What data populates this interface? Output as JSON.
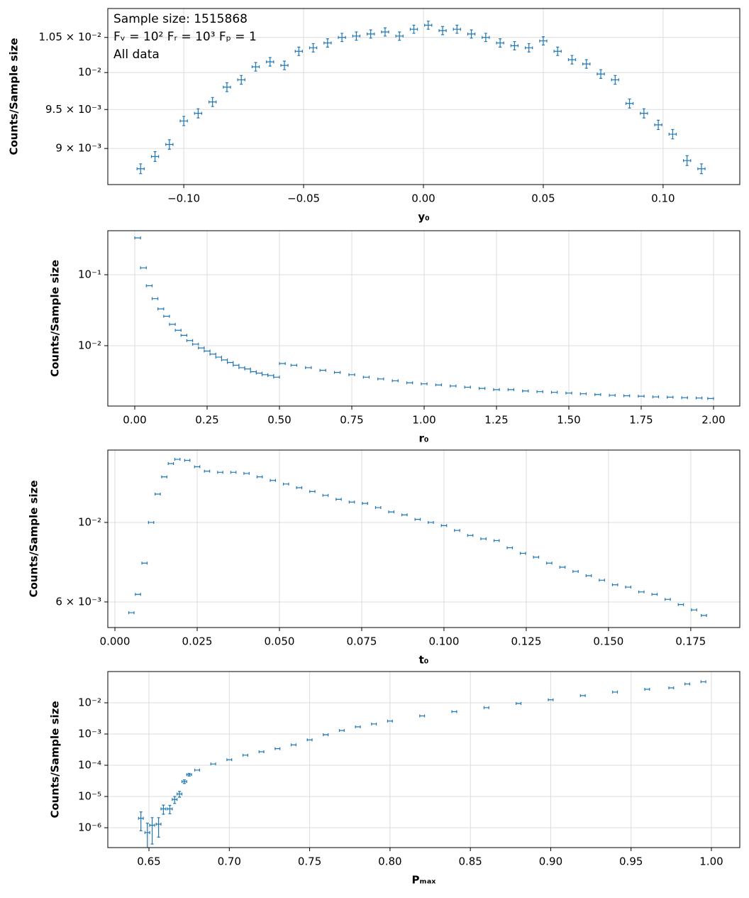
{
  "chart_data": [
    {
      "type": "errorbar",
      "xlabel": "y₀",
      "ylabel": "Counts/Sample size",
      "color": "#1f77b4",
      "yscale": "log",
      "grid": true,
      "annotations": [
        "Sample size: 1515868",
        "Fᵥ = 10²   Fᵣ = 10³   Fₚ = 1",
        "All data"
      ],
      "xlim": [
        -0.1317,
        0.132
      ],
      "ylim": [
        0.00856,
        0.01093
      ],
      "xticks": [
        {
          "value": -0.1,
          "label": "−0.10"
        },
        {
          "value": -0.05,
          "label": "−0.05"
        },
        {
          "value": 0,
          "label": "0.00"
        },
        0.05,
        {
          "value": 0.1,
          "label": "0.10"
        }
      ],
      "yticks": [
        {
          "value": 0.009,
          "label": "9 × 10⁻³"
        },
        {
          "value": 0.0095,
          "label": "9.5 × 10⁻³"
        },
        {
          "value": 0.01,
          "label": "10⁻²"
        },
        {
          "value": 0.0105,
          "label": "1.05 × 10⁻²"
        }
      ],
      "xerr": 0.0015,
      "yerr": 6e-05,
      "x": [
        -0.118,
        -0.112,
        -0.106,
        -0.1,
        -0.094,
        -0.088,
        -0.082,
        -0.076,
        -0.07,
        -0.064,
        -0.058,
        -0.052,
        -0.046,
        -0.04,
        -0.034,
        -0.028,
        -0.022,
        -0.016,
        -0.01,
        -0.004,
        0.002,
        0.008,
        0.014,
        0.02,
        0.026,
        0.032,
        0.038,
        0.044,
        0.05,
        0.056,
        0.062,
        0.068,
        0.074,
        0.08,
        0.086,
        0.092,
        0.098,
        0.104,
        0.11,
        0.116
      ],
      "values": [
        0.00875,
        0.0089,
        0.00905,
        0.00935,
        0.00945,
        0.0096,
        0.0098,
        0.0099,
        0.01008,
        0.01015,
        0.0101,
        0.0103,
        0.01035,
        0.01042,
        0.0105,
        0.01052,
        0.01055,
        0.01058,
        0.01052,
        0.01062,
        0.01068,
        0.0106,
        0.01062,
        0.01055,
        0.0105,
        0.01042,
        0.01038,
        0.01035,
        0.01045,
        0.0103,
        0.01018,
        0.01012,
        0.00998,
        0.0099,
        0.00958,
        0.00945,
        0.0093,
        0.00918,
        0.00885,
        0.00875
      ]
    },
    {
      "type": "errorbar",
      "xlabel": "r₀",
      "ylabel": "Counts/Sample size",
      "color": "#1f77b4",
      "yscale": "log",
      "grid": true,
      "xlim": [
        -0.0931,
        2.0907
      ],
      "ylim": [
        0.00141,
        0.417
      ],
      "xticks": [
        {
          "value": 0,
          "label": "0.00"
        },
        0.25,
        {
          "value": 0.5,
          "label": "0.50"
        },
        0.75,
        {
          "value": 1,
          "label": "1.00"
        },
        1.25,
        {
          "value": 1.5,
          "label": "1.50"
        },
        1.75,
        {
          "value": 2,
          "label": "2.00"
        }
      ],
      "yticks": [
        {
          "value": 0.01,
          "label": "10⁻²"
        },
        {
          "value": 0.1,
          "label": "10⁻¹"
        }
      ],
      "xerr": 0.01,
      "x": [
        0.01,
        0.03,
        0.05,
        0.07,
        0.09,
        0.11,
        0.13,
        0.15,
        0.17,
        0.19,
        0.21,
        0.23,
        0.25,
        0.27,
        0.29,
        0.31,
        0.33,
        0.35,
        0.37,
        0.39,
        0.41,
        0.43,
        0.45,
        0.47,
        0.49,
        0.51,
        0.55,
        0.6,
        0.65,
        0.7,
        0.75,
        0.8,
        0.85,
        0.9,
        0.95,
        1.0,
        1.05,
        1.1,
        1.15,
        1.2,
        1.25,
        1.3,
        1.35,
        1.4,
        1.45,
        1.5,
        1.55,
        1.6,
        1.65,
        1.7,
        1.75,
        1.8,
        1.85,
        1.9,
        1.95,
        1.99
      ],
      "values": [
        0.33,
        0.125,
        0.07,
        0.046,
        0.033,
        0.026,
        0.02,
        0.0165,
        0.014,
        0.0118,
        0.0105,
        0.0093,
        0.0084,
        0.0076,
        0.0069,
        0.0063,
        0.0058,
        0.0053,
        0.0049,
        0.0047,
        0.0043,
        0.0041,
        0.0039,
        0.0038,
        0.0036,
        0.0056,
        0.0053,
        0.0049,
        0.0045,
        0.0042,
        0.0039,
        0.0036,
        0.0034,
        0.0032,
        0.003,
        0.0029,
        0.0028,
        0.0027,
        0.0026,
        0.0025,
        0.0024,
        0.0024,
        0.0023,
        0.00225,
        0.0022,
        0.00215,
        0.0021,
        0.00205,
        0.002,
        0.00197,
        0.00194,
        0.0019,
        0.00188,
        0.00185,
        0.00183,
        0.0018
      ]
    },
    {
      "type": "errorbar",
      "xlabel": "t₀",
      "ylabel": "Counts/Sample size",
      "color": "#1f77b4",
      "yscale": "log",
      "grid": true,
      "xlim": [
        -0.00216,
        0.1899
      ],
      "ylim": [
        0.00509,
        0.01592
      ],
      "xticks": [
        {
          "value": 0,
          "label": "0.000"
        },
        0.025,
        {
          "value": 0.05,
          "label": "0.050"
        },
        0.075,
        {
          "value": 0.1,
          "label": "0.100"
        },
        0.125,
        {
          "value": 0.15,
          "label": "0.150"
        },
        0.175
      ],
      "yticks": [
        {
          "value": 0.006,
          "label": "6 × 10⁻³"
        },
        {
          "value": 0.01,
          "label": "10⁻²"
        }
      ],
      "xerr": 0.0008,
      "x": [
        0.005,
        0.007,
        0.009,
        0.011,
        0.013,
        0.015,
        0.017,
        0.019,
        0.022,
        0.025,
        0.028,
        0.032,
        0.036,
        0.04,
        0.044,
        0.048,
        0.052,
        0.056,
        0.06,
        0.064,
        0.068,
        0.072,
        0.076,
        0.08,
        0.084,
        0.088,
        0.092,
        0.096,
        0.1,
        0.104,
        0.108,
        0.112,
        0.116,
        0.12,
        0.124,
        0.128,
        0.132,
        0.136,
        0.14,
        0.144,
        0.148,
        0.152,
        0.156,
        0.16,
        0.164,
        0.168,
        0.172,
        0.176,
        0.179
      ],
      "values": [
        0.0056,
        0.0063,
        0.0077,
        0.01,
        0.012,
        0.0134,
        0.0146,
        0.015,
        0.0149,
        0.0143,
        0.0139,
        0.0138,
        0.0138,
        0.0137,
        0.0134,
        0.0131,
        0.0128,
        0.0125,
        0.0122,
        0.0119,
        0.0116,
        0.0114,
        0.0113,
        0.011,
        0.0107,
        0.0105,
        0.0102,
        0.01,
        0.0098,
        0.0095,
        0.0092,
        0.009,
        0.0089,
        0.0085,
        0.0082,
        0.008,
        0.0077,
        0.0075,
        0.0073,
        0.0071,
        0.0069,
        0.0067,
        0.0066,
        0.0064,
        0.0063,
        0.0061,
        0.0059,
        0.0057,
        0.0055
      ]
    },
    {
      "type": "errorbar",
      "xlabel": "Pₘₐₓ",
      "ylabel": "Counts/Sample size",
      "color": "#1f77b4",
      "yscale": "log",
      "grid": true,
      "xlim": [
        0.6244,
        1.01765
      ],
      "ylim": [
        2.31e-07,
        0.1
      ],
      "xticks": [
        0.65,
        {
          "value": 0.7,
          "label": "0.70"
        },
        0.75,
        {
          "value": 0.8,
          "label": "0.80"
        },
        0.85,
        {
          "value": 0.9,
          "label": "0.90"
        },
        0.95,
        {
          "value": 1,
          "label": "1.00"
        }
      ],
      "yticks": [
        {
          "value": 1e-06,
          "label": "10⁻⁶"
        },
        {
          "value": 1e-05,
          "label": "10⁻⁵"
        },
        {
          "value": 0.0001,
          "label": "10⁻⁴"
        },
        {
          "value": 0.001,
          "label": "10⁻³"
        },
        {
          "value": 0.01,
          "label": "10⁻²"
        }
      ],
      "xerr": 0.0015,
      "x": [
        0.645,
        0.649,
        0.652,
        0.656,
        0.659,
        0.663,
        0.666,
        0.669,
        0.672,
        0.675,
        0.68,
        0.69,
        0.7,
        0.71,
        0.72,
        0.73,
        0.74,
        0.75,
        0.76,
        0.77,
        0.78,
        0.79,
        0.8,
        0.82,
        0.84,
        0.86,
        0.88,
        0.9,
        0.92,
        0.94,
        0.96,
        0.975,
        0.985,
        0.995
      ],
      "values": [
        2e-06,
        7e-07,
        1.2e-06,
        1.3e-06,
        4e-06,
        4e-06,
        8e-06,
        1.2e-05,
        3e-05,
        5e-05,
        7e-05,
        0.00011,
        0.00015,
        0.00021,
        0.00027,
        0.00034,
        0.00045,
        0.00065,
        0.00095,
        0.0013,
        0.0017,
        0.0021,
        0.0026,
        0.0038,
        0.0052,
        0.007,
        0.0095,
        0.0125,
        0.017,
        0.022,
        0.027,
        0.03,
        0.04,
        0.047
      ],
      "yerr": [
        1.2e-06,
        7e-07,
        9e-07,
        8e-07,
        1.3e-06,
        1.2e-06,
        2e-06,
        2.5e-06,
        4e-06,
        5e-06,
        0,
        0,
        0,
        0,
        0,
        0,
        0,
        0,
        0,
        0,
        0,
        0,
        0,
        0,
        0,
        0,
        0,
        0,
        0,
        0,
        0,
        0,
        0,
        0
      ]
    }
  ]
}
